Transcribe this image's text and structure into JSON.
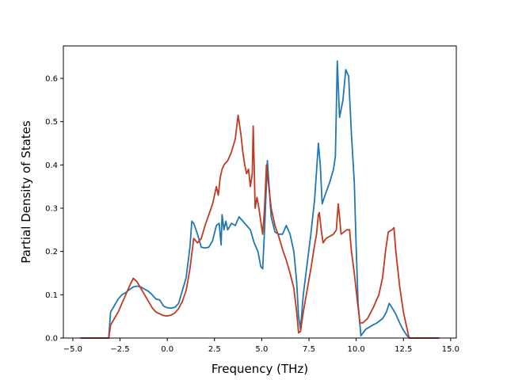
{
  "chart_data": {
    "type": "line",
    "title": "",
    "xlabel": "Frequency (THz)",
    "ylabel": "Partial Density of States",
    "xlim": [
      -5.5,
      15.3
    ],
    "ylim": [
      0.0,
      0.675
    ],
    "xticks": [
      -5.0,
      -2.5,
      0.0,
      2.5,
      5.0,
      7.5,
      10.0,
      12.5,
      15.0
    ],
    "xtick_labels": [
      "−5.0",
      "−2.5",
      "0.0",
      "2.5",
      "5.0",
      "7.5",
      "10.0",
      "12.5",
      "15.0"
    ],
    "yticks": [
      0.0,
      0.1,
      0.2,
      0.3,
      0.4,
      0.5,
      0.6
    ],
    "ytick_labels": [
      "0.0",
      "0.1",
      "0.2",
      "0.3",
      "0.4",
      "0.5",
      "0.6"
    ],
    "grid": false,
    "series": [
      {
        "color": "#1f77b4",
        "points": [
          [
            -4.6,
            0.0
          ],
          [
            -3.5,
            0.0
          ],
          [
            -3.1,
            0.0
          ],
          [
            -3.0,
            0.06
          ],
          [
            -2.8,
            0.075
          ],
          [
            -2.6,
            0.09
          ],
          [
            -2.4,
            0.1
          ],
          [
            -2.2,
            0.105
          ],
          [
            -2.0,
            0.112
          ],
          [
            -1.8,
            0.118
          ],
          [
            -1.6,
            0.12
          ],
          [
            -1.4,
            0.118
          ],
          [
            -1.2,
            0.113
          ],
          [
            -1.0,
            0.108
          ],
          [
            -0.8,
            0.1
          ],
          [
            -0.6,
            0.09
          ],
          [
            -0.4,
            0.088
          ],
          [
            -0.2,
            0.074
          ],
          [
            0.0,
            0.07
          ],
          [
            0.2,
            0.069
          ],
          [
            0.4,
            0.071
          ],
          [
            0.6,
            0.08
          ],
          [
            0.8,
            0.11
          ],
          [
            1.0,
            0.14
          ],
          [
            1.2,
            0.21
          ],
          [
            1.3,
            0.27
          ],
          [
            1.4,
            0.265
          ],
          [
            1.6,
            0.24
          ],
          [
            1.8,
            0.21
          ],
          [
            2.0,
            0.208
          ],
          [
            2.2,
            0.21
          ],
          [
            2.4,
            0.225
          ],
          [
            2.6,
            0.26
          ],
          [
            2.75,
            0.265
          ],
          [
            2.85,
            0.215
          ],
          [
            2.9,
            0.285
          ],
          [
            3.0,
            0.25
          ],
          [
            3.1,
            0.27
          ],
          [
            3.2,
            0.25
          ],
          [
            3.4,
            0.265
          ],
          [
            3.6,
            0.26
          ],
          [
            3.8,
            0.28
          ],
          [
            4.0,
            0.27
          ],
          [
            4.2,
            0.26
          ],
          [
            4.4,
            0.25
          ],
          [
            4.6,
            0.22
          ],
          [
            4.8,
            0.2
          ],
          [
            4.95,
            0.165
          ],
          [
            5.05,
            0.16
          ],
          [
            5.15,
            0.25
          ],
          [
            5.3,
            0.41
          ],
          [
            5.5,
            0.28
          ],
          [
            5.7,
            0.245
          ],
          [
            5.9,
            0.24
          ],
          [
            6.1,
            0.24
          ],
          [
            6.3,
            0.26
          ],
          [
            6.5,
            0.24
          ],
          [
            6.7,
            0.2
          ],
          [
            6.85,
            0.13
          ],
          [
            6.95,
            0.05
          ],
          [
            7.05,
            0.02
          ],
          [
            7.2,
            0.1
          ],
          [
            7.4,
            0.17
          ],
          [
            7.6,
            0.24
          ],
          [
            7.8,
            0.32
          ],
          [
            8.0,
            0.45
          ],
          [
            8.1,
            0.4
          ],
          [
            8.2,
            0.31
          ],
          [
            8.35,
            0.33
          ],
          [
            8.6,
            0.36
          ],
          [
            8.8,
            0.39
          ],
          [
            8.9,
            0.42
          ],
          [
            9.0,
            0.64
          ],
          [
            9.12,
            0.51
          ],
          [
            9.3,
            0.55
          ],
          [
            9.45,
            0.62
          ],
          [
            9.6,
            0.605
          ],
          [
            9.75,
            0.47
          ],
          [
            9.9,
            0.36
          ],
          [
            10.0,
            0.21
          ],
          [
            10.1,
            0.08
          ],
          [
            10.25,
            0.005
          ],
          [
            10.5,
            0.02
          ],
          [
            10.8,
            0.028
          ],
          [
            11.1,
            0.035
          ],
          [
            11.4,
            0.045
          ],
          [
            11.6,
            0.06
          ],
          [
            11.75,
            0.08
          ],
          [
            11.9,
            0.07
          ],
          [
            12.1,
            0.055
          ],
          [
            12.3,
            0.035
          ],
          [
            12.5,
            0.018
          ],
          [
            12.7,
            0.005
          ],
          [
            12.85,
            0.0
          ],
          [
            13.5,
            0.0
          ],
          [
            14.4,
            0.0
          ]
        ]
      },
      {
        "color": "#c03a21",
        "points": [
          [
            -4.6,
            0.0
          ],
          [
            -3.5,
            0.0
          ],
          [
            -3.1,
            0.0
          ],
          [
            -3.0,
            0.03
          ],
          [
            -2.8,
            0.045
          ],
          [
            -2.6,
            0.06
          ],
          [
            -2.4,
            0.08
          ],
          [
            -2.2,
            0.1
          ],
          [
            -2.0,
            0.12
          ],
          [
            -1.8,
            0.138
          ],
          [
            -1.6,
            0.13
          ],
          [
            -1.4,
            0.115
          ],
          [
            -1.2,
            0.1
          ],
          [
            -1.0,
            0.085
          ],
          [
            -0.8,
            0.07
          ],
          [
            -0.6,
            0.06
          ],
          [
            -0.4,
            0.056
          ],
          [
            -0.2,
            0.052
          ],
          [
            0.0,
            0.051
          ],
          [
            0.2,
            0.053
          ],
          [
            0.4,
            0.058
          ],
          [
            0.6,
            0.068
          ],
          [
            0.8,
            0.085
          ],
          [
            1.0,
            0.11
          ],
          [
            1.2,
            0.16
          ],
          [
            1.4,
            0.23
          ],
          [
            1.6,
            0.22
          ],
          [
            1.8,
            0.23
          ],
          [
            2.0,
            0.26
          ],
          [
            2.2,
            0.285
          ],
          [
            2.4,
            0.31
          ],
          [
            2.6,
            0.35
          ],
          [
            2.7,
            0.33
          ],
          [
            2.8,
            0.37
          ],
          [
            2.9,
            0.39
          ],
          [
            3.0,
            0.4
          ],
          [
            3.2,
            0.41
          ],
          [
            3.4,
            0.43
          ],
          [
            3.6,
            0.46
          ],
          [
            3.75,
            0.515
          ],
          [
            3.9,
            0.47
          ],
          [
            4.0,
            0.43
          ],
          [
            4.1,
            0.4
          ],
          [
            4.2,
            0.38
          ],
          [
            4.3,
            0.39
          ],
          [
            4.4,
            0.35
          ],
          [
            4.5,
            0.38
          ],
          [
            4.55,
            0.49
          ],
          [
            4.6,
            0.4
          ],
          [
            4.65,
            0.3
          ],
          [
            4.75,
            0.325
          ],
          [
            4.85,
            0.3
          ],
          [
            4.95,
            0.27
          ],
          [
            5.05,
            0.24
          ],
          [
            5.15,
            0.3
          ],
          [
            5.25,
            0.4
          ],
          [
            5.35,
            0.36
          ],
          [
            5.5,
            0.3
          ],
          [
            5.7,
            0.26
          ],
          [
            5.9,
            0.235
          ],
          [
            6.1,
            0.205
          ],
          [
            6.3,
            0.18
          ],
          [
            6.5,
            0.15
          ],
          [
            6.7,
            0.115
          ],
          [
            6.85,
            0.06
          ],
          [
            6.95,
            0.012
          ],
          [
            7.05,
            0.015
          ],
          [
            7.2,
            0.06
          ],
          [
            7.4,
            0.11
          ],
          [
            7.6,
            0.16
          ],
          [
            7.8,
            0.215
          ],
          [
            7.9,
            0.24
          ],
          [
            8.0,
            0.285
          ],
          [
            8.05,
            0.29
          ],
          [
            8.15,
            0.25
          ],
          [
            8.25,
            0.22
          ],
          [
            8.4,
            0.23
          ],
          [
            8.6,
            0.235
          ],
          [
            8.8,
            0.24
          ],
          [
            8.95,
            0.25
          ],
          [
            9.05,
            0.31
          ],
          [
            9.12,
            0.28
          ],
          [
            9.2,
            0.24
          ],
          [
            9.35,
            0.245
          ],
          [
            9.5,
            0.25
          ],
          [
            9.65,
            0.25
          ],
          [
            9.75,
            0.2
          ],
          [
            9.9,
            0.15
          ],
          [
            10.05,
            0.09
          ],
          [
            10.2,
            0.035
          ],
          [
            10.35,
            0.035
          ],
          [
            10.6,
            0.045
          ],
          [
            10.9,
            0.07
          ],
          [
            11.2,
            0.1
          ],
          [
            11.4,
            0.14
          ],
          [
            11.55,
            0.2
          ],
          [
            11.7,
            0.245
          ],
          [
            11.9,
            0.25
          ],
          [
            12.0,
            0.255
          ],
          [
            12.1,
            0.2
          ],
          [
            12.3,
            0.12
          ],
          [
            12.5,
            0.06
          ],
          [
            12.7,
            0.02
          ],
          [
            12.8,
            0.0
          ],
          [
            13.5,
            0.0
          ],
          [
            14.4,
            0.0
          ]
        ]
      }
    ]
  }
}
